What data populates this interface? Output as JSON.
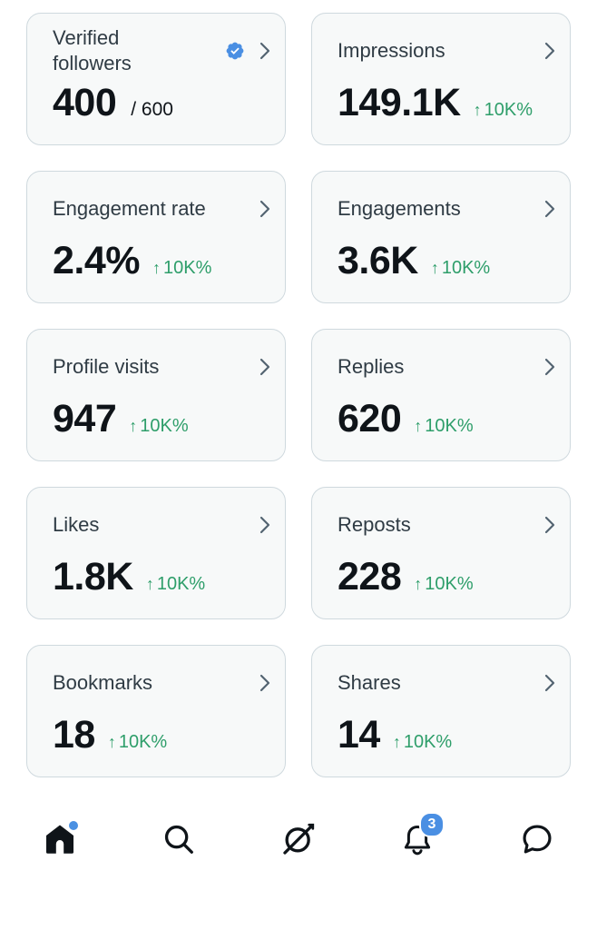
{
  "metrics": [
    {
      "label": "Verified followers",
      "value": "400",
      "total": "/ 600",
      "change": "",
      "verified": true
    },
    {
      "label": "Impressions",
      "value": "149.1K",
      "change": "10K%"
    },
    {
      "label": "Engagement rate",
      "value": "2.4%",
      "change": "10K%"
    },
    {
      "label": "Engagements",
      "value": "3.6K",
      "change": "10K%"
    },
    {
      "label": "Profile visits",
      "value": "947",
      "change": "10K%"
    },
    {
      "label": "Replies",
      "value": "620",
      "change": "10K%"
    },
    {
      "label": "Likes",
      "value": "1.8K",
      "change": "10K%"
    },
    {
      "label": "Reposts",
      "value": "228",
      "change": "10K%"
    },
    {
      "label": "Bookmarks",
      "value": "18",
      "change": "10K%"
    },
    {
      "label": "Shares",
      "value": "14",
      "change": "10K%"
    }
  ],
  "tabs": {
    "notifications_badge": "3"
  },
  "icons": {
    "chevron": "chevron-right-icon",
    "verified": "verified-badge-icon",
    "home": "home-icon",
    "search": "search-icon",
    "grok": "grok-icon",
    "notifications": "bell-icon",
    "messages": "message-icon"
  },
  "colors": {
    "card_bg": "#f7f9f9",
    "card_border": "#cfd9de",
    "positive_change": "#2e9e6a",
    "verified_blue": "#4a8fe3"
  }
}
